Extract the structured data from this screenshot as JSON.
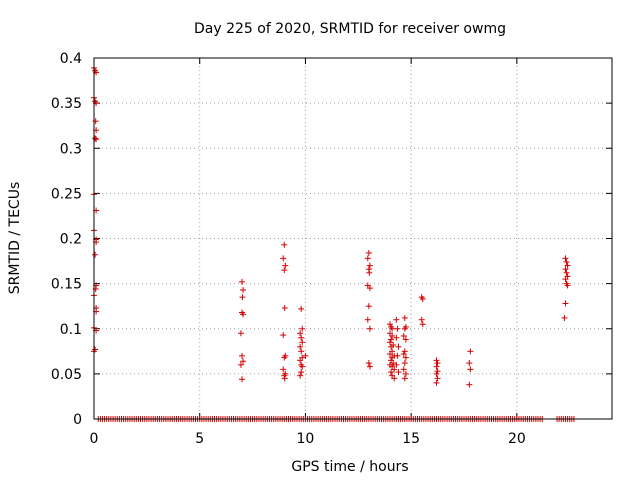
{
  "chart_data": {
    "type": "scatter",
    "title": "Day 225 of 2020, SRMTID for receiver owmg",
    "xlabel": "GPS time / hours",
    "ylabel": "SRMTID / TECUs",
    "xlim": [
      0,
      24.5
    ],
    "ylim": [
      0,
      0.4
    ],
    "xticks": [
      0,
      5,
      10,
      15,
      20
    ],
    "yticks": [
      0,
      0.05,
      0.1,
      0.15,
      0.2,
      0.25,
      0.3,
      0.35,
      0.4
    ],
    "ytick_labels": [
      "0",
      "0.05",
      "0.1",
      "0.15",
      "0.2",
      "0.25",
      "0.3",
      "0.35",
      "0.4"
    ],
    "grid": true,
    "marker": "+",
    "color": "#d40000",
    "series": [
      {
        "name": "SRMTID",
        "points": [
          [
            0.0,
            0.389
          ],
          [
            0.05,
            0.386
          ],
          [
            0.1,
            0.384
          ],
          [
            0.0,
            0.356
          ],
          [
            0.05,
            0.352
          ],
          [
            0.1,
            0.35
          ],
          [
            0.08,
            0.33
          ],
          [
            0.1,
            0.32
          ],
          [
            0.05,
            0.311
          ],
          [
            0.1,
            0.31
          ],
          [
            0.0,
            0.249
          ],
          [
            0.1,
            0.231
          ],
          [
            0.0,
            0.209
          ],
          [
            0.1,
            0.199
          ],
          [
            0.1,
            0.196
          ],
          [
            0.05,
            0.182
          ],
          [
            0.1,
            0.148
          ],
          [
            0.08,
            0.144
          ],
          [
            0.0,
            0.137
          ],
          [
            0.1,
            0.123
          ],
          [
            0.1,
            0.119
          ],
          [
            0.0,
            0.101
          ],
          [
            0.1,
            0.098
          ],
          [
            0.05,
            0.077
          ],
          [
            0.0,
            0.075
          ],
          [
            7.0,
            0.152
          ],
          [
            7.05,
            0.143
          ],
          [
            7.02,
            0.135
          ],
          [
            7.0,
            0.118
          ],
          [
            7.05,
            0.116
          ],
          [
            6.95,
            0.095
          ],
          [
            7.0,
            0.07
          ],
          [
            7.05,
            0.064
          ],
          [
            6.95,
            0.06
          ],
          [
            7.0,
            0.044
          ],
          [
            9.0,
            0.193
          ],
          [
            8.95,
            0.178
          ],
          [
            9.05,
            0.17
          ],
          [
            9.0,
            0.165
          ],
          [
            9.02,
            0.123
          ],
          [
            8.95,
            0.093
          ],
          [
            9.05,
            0.07
          ],
          [
            9.0,
            0.068
          ],
          [
            8.95,
            0.055
          ],
          [
            9.05,
            0.05
          ],
          [
            9.0,
            0.048
          ],
          [
            9.02,
            0.045
          ],
          [
            9.8,
            0.122
          ],
          [
            9.85,
            0.1
          ],
          [
            9.75,
            0.095
          ],
          [
            9.8,
            0.09
          ],
          [
            9.85,
            0.085
          ],
          [
            9.75,
            0.08
          ],
          [
            9.8,
            0.075
          ],
          [
            9.85,
            0.068
          ],
          [
            9.75,
            0.065
          ],
          [
            9.8,
            0.06
          ],
          [
            9.85,
            0.058
          ],
          [
            9.8,
            0.052
          ],
          [
            9.75,
            0.048
          ],
          [
            10.0,
            0.07
          ],
          [
            13.0,
            0.184
          ],
          [
            12.95,
            0.178
          ],
          [
            13.05,
            0.17
          ],
          [
            13.0,
            0.166
          ],
          [
            13.02,
            0.162
          ],
          [
            12.95,
            0.148
          ],
          [
            13.05,
            0.145
          ],
          [
            13.0,
            0.125
          ],
          [
            12.95,
            0.11
          ],
          [
            13.05,
            0.1
          ],
          [
            13.0,
            0.062
          ],
          [
            13.05,
            0.058
          ],
          [
            14.0,
            0.105
          ],
          [
            14.05,
            0.102
          ],
          [
            14.1,
            0.1
          ],
          [
            14.0,
            0.095
          ],
          [
            14.1,
            0.092
          ],
          [
            14.05,
            0.088
          ],
          [
            14.0,
            0.085
          ],
          [
            14.15,
            0.082
          ],
          [
            14.05,
            0.08
          ],
          [
            14.1,
            0.075
          ],
          [
            14.0,
            0.072
          ],
          [
            14.2,
            0.07
          ],
          [
            14.1,
            0.068
          ],
          [
            14.05,
            0.065
          ],
          [
            14.15,
            0.062
          ],
          [
            14.0,
            0.06
          ],
          [
            14.1,
            0.058
          ],
          [
            14.2,
            0.055
          ],
          [
            14.05,
            0.052
          ],
          [
            14.1,
            0.048
          ],
          [
            14.2,
            0.045
          ],
          [
            14.3,
            0.11
          ],
          [
            14.35,
            0.1
          ],
          [
            14.3,
            0.09
          ],
          [
            14.4,
            0.08
          ],
          [
            14.35,
            0.07
          ],
          [
            14.3,
            0.06
          ],
          [
            14.4,
            0.052
          ],
          [
            14.7,
            0.112
          ],
          [
            14.75,
            0.102
          ],
          [
            14.7,
            0.1
          ],
          [
            14.65,
            0.092
          ],
          [
            14.75,
            0.088
          ],
          [
            14.7,
            0.075
          ],
          [
            14.65,
            0.072
          ],
          [
            14.75,
            0.068
          ],
          [
            14.7,
            0.062
          ],
          [
            14.65,
            0.055
          ],
          [
            14.75,
            0.05
          ],
          [
            14.7,
            0.045
          ],
          [
            15.5,
            0.135
          ],
          [
            15.55,
            0.133
          ],
          [
            15.5,
            0.11
          ],
          [
            15.55,
            0.105
          ],
          [
            16.2,
            0.065
          ],
          [
            16.25,
            0.062
          ],
          [
            16.2,
            0.058
          ],
          [
            16.25,
            0.053
          ],
          [
            16.2,
            0.05
          ],
          [
            16.25,
            0.045
          ],
          [
            16.2,
            0.04
          ],
          [
            17.8,
            0.075
          ],
          [
            17.75,
            0.062
          ],
          [
            17.8,
            0.055
          ],
          [
            17.75,
            0.038
          ],
          [
            22.3,
            0.178
          ],
          [
            22.35,
            0.174
          ],
          [
            22.4,
            0.17
          ],
          [
            22.3,
            0.166
          ],
          [
            22.35,
            0.162
          ],
          [
            22.4,
            0.158
          ],
          [
            22.3,
            0.155
          ],
          [
            22.35,
            0.15
          ],
          [
            22.4,
            0.148
          ],
          [
            22.3,
            0.128
          ],
          [
            22.25,
            0.112
          ]
        ],
        "zero_intervals": [
          [
            0.2,
            21.2
          ],
          [
            21.9,
            22.7
          ]
        ]
      }
    ]
  }
}
